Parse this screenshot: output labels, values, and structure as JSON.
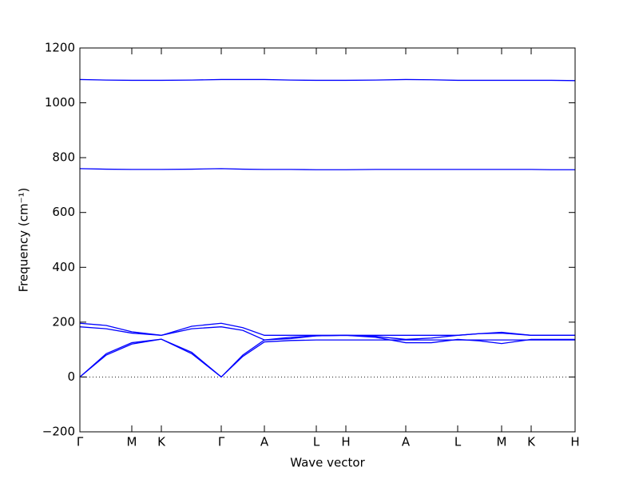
{
  "chart_data": {
    "type": "line",
    "xlabel": "Wave vector",
    "ylabel": "Frequency (cm⁻¹)",
    "x": [
      0,
      0.33,
      0.65,
      1.02,
      1.4,
      1.77,
      2.04,
      2.31,
      2.64,
      2.96,
      3.33,
      3.7,
      4.08,
      4.4,
      4.73,
      5.0,
      5.28,
      5.65,
      5.9,
      6.2
    ],
    "xlim": [
      0,
      6.2
    ],
    "xticks": [
      {
        "value": 0,
        "label": "Γ"
      },
      {
        "value": 0.65,
        "label": "M"
      },
      {
        "value": 1.02,
        "label": "K"
      },
      {
        "value": 1.77,
        "label": "Γ"
      },
      {
        "value": 2.31,
        "label": "A"
      },
      {
        "value": 2.96,
        "label": "L"
      },
      {
        "value": 3.33,
        "label": "H"
      },
      {
        "value": 4.08,
        "label": "A"
      },
      {
        "value": 4.73,
        "label": "L"
      },
      {
        "value": 5.28,
        "label": "M"
      },
      {
        "value": 5.65,
        "label": "K"
      },
      {
        "value": 6.2,
        "label": "H"
      }
    ],
    "ylim": [
      -200,
      1200
    ],
    "yticks": [
      {
        "value": -200,
        "label": "−200"
      },
      0,
      200,
      400,
      600,
      800,
      1000,
      1200
    ],
    "zero_line": true,
    "series": [
      {
        "color": "#0000ff",
        "values": [
          1085,
          1083,
          1082,
          1082,
          1083,
          1085,
          1085,
          1085,
          1083,
          1082,
          1082,
          1083,
          1085,
          1084,
          1082,
          1082,
          1082,
          1082,
          1082,
          1081
        ]
      },
      {
        "color": "#0000ff",
        "values": [
          760,
          758,
          757,
          757,
          758,
          760,
          758,
          757,
          757,
          756,
          756,
          757,
          757,
          757,
          757,
          757,
          757,
          757,
          756,
          756
        ]
      },
      {
        "color": "#0000ff",
        "values": [
          196,
          188,
          165,
          152,
          185,
          196,
          180,
          152,
          152,
          152,
          152,
          152,
          152,
          152,
          152,
          158,
          163,
          152,
          152,
          152
        ]
      },
      {
        "color": "#0000ff",
        "values": [
          183,
          176,
          160,
          152,
          176,
          183,
          170,
          135,
          140,
          150,
          152,
          148,
          137,
          142,
          152,
          158,
          160,
          152,
          152,
          152
        ]
      },
      {
        "color": "#0000ff",
        "values": [
          0,
          80,
          120,
          138,
          85,
          0,
          75,
          128,
          133,
          135,
          135,
          135,
          135,
          135,
          135,
          135,
          135,
          135,
          135,
          135
        ]
      },
      {
        "color": "#0000ff",
        "values": [
          0,
          85,
          125,
          138,
          90,
          0,
          80,
          135,
          145,
          150,
          152,
          145,
          125,
          125,
          137,
          132,
          122,
          137,
          137,
          137
        ]
      }
    ]
  }
}
